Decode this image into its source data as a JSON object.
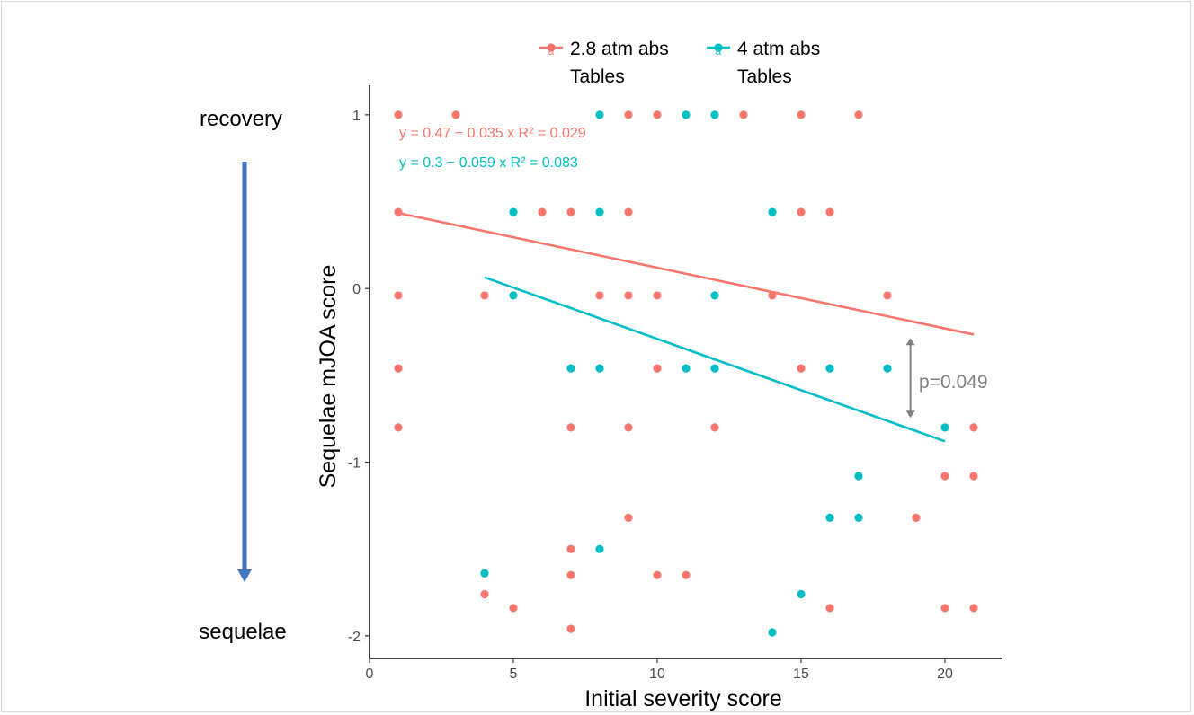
{
  "chart_data": {
    "type": "scatter",
    "xlabel": "Initial severity score",
    "ylabel": "Sequelae mJOA score",
    "xlim": [
      0,
      22
    ],
    "ylim": [
      -2.13,
      1.17
    ],
    "x_ticks": [
      0,
      5,
      10,
      15,
      20
    ],
    "y_ticks": [
      -2,
      -1,
      0,
      1
    ],
    "grid": false,
    "legend_placement": "top",
    "series": [
      {
        "name_line1": "2.8 atm abs",
        "name_line2": "Tables",
        "legend_glyph": "a",
        "color": "#F8766D",
        "points": [
          [
            1,
            1.0
          ],
          [
            3,
            1.0
          ],
          [
            9,
            1.0
          ],
          [
            10,
            1.0
          ],
          [
            13,
            1.0
          ],
          [
            15,
            1.0
          ],
          [
            17,
            1.0
          ],
          [
            1,
            0.44
          ],
          [
            6,
            0.44
          ],
          [
            7,
            0.44
          ],
          [
            9,
            0.44
          ],
          [
            15,
            0.44
          ],
          [
            16,
            0.44
          ],
          [
            1,
            -0.04
          ],
          [
            4,
            -0.04
          ],
          [
            8,
            -0.04
          ],
          [
            9,
            -0.04
          ],
          [
            10,
            -0.04
          ],
          [
            14,
            -0.04
          ],
          [
            18,
            -0.04
          ],
          [
            1,
            -0.46
          ],
          [
            10,
            -0.46
          ],
          [
            15,
            -0.46
          ],
          [
            1,
            -0.8
          ],
          [
            7,
            -0.8
          ],
          [
            9,
            -0.8
          ],
          [
            12,
            -0.8
          ],
          [
            21,
            -0.8
          ],
          [
            20,
            -1.08
          ],
          [
            21,
            -1.08
          ],
          [
            9,
            -1.32
          ],
          [
            19,
            -1.32
          ],
          [
            7,
            -1.5
          ],
          [
            7,
            -1.65
          ],
          [
            10,
            -1.65
          ],
          [
            11,
            -1.65
          ],
          [
            4,
            -1.76
          ],
          [
            5,
            -1.84
          ],
          [
            16,
            -1.84
          ],
          [
            20,
            -1.84
          ],
          [
            21,
            -1.84
          ],
          [
            7,
            -1.96
          ]
        ],
        "fit": {
          "x": [
            1,
            21
          ],
          "y": [
            0.435,
            -0.265
          ]
        },
        "equation": "y = 0.47 − 0.035 x   R² = 0.029"
      },
      {
        "name_line1": "4 atm abs",
        "name_line2": "Tables",
        "legend_glyph": "a",
        "color": "#00BFC4",
        "points": [
          [
            8,
            1.0
          ],
          [
            11,
            1.0
          ],
          [
            12,
            1.0
          ],
          [
            5,
            0.44
          ],
          [
            8,
            0.44
          ],
          [
            14,
            0.44
          ],
          [
            5,
            -0.04
          ],
          [
            12,
            -0.04
          ],
          [
            7,
            -0.46
          ],
          [
            8,
            -0.46
          ],
          [
            11,
            -0.46
          ],
          [
            12,
            -0.46
          ],
          [
            16,
            -0.46
          ],
          [
            18,
            -0.46
          ],
          [
            20,
            -0.8
          ],
          [
            17,
            -1.08
          ],
          [
            16,
            -1.32
          ],
          [
            17,
            -1.32
          ],
          [
            8,
            -1.5
          ],
          [
            4,
            -1.64
          ],
          [
            15,
            -1.76
          ],
          [
            14,
            -1.98
          ]
        ],
        "fit": {
          "x": [
            4,
            20
          ],
          "y": [
            0.064,
            -0.88
          ]
        },
        "equation": "y = 0.3 − 0.059 x   R² = 0.083"
      }
    ],
    "annotations": {
      "top_label": "recovery",
      "bottom_label": "sequelae",
      "p_value": "p=0.049",
      "p_arrow": {
        "x": 18.8,
        "y_from": -0.29,
        "y_to": -0.74,
        "color": "#808080"
      },
      "direction_arrow_color": "#4472C4"
    }
  }
}
